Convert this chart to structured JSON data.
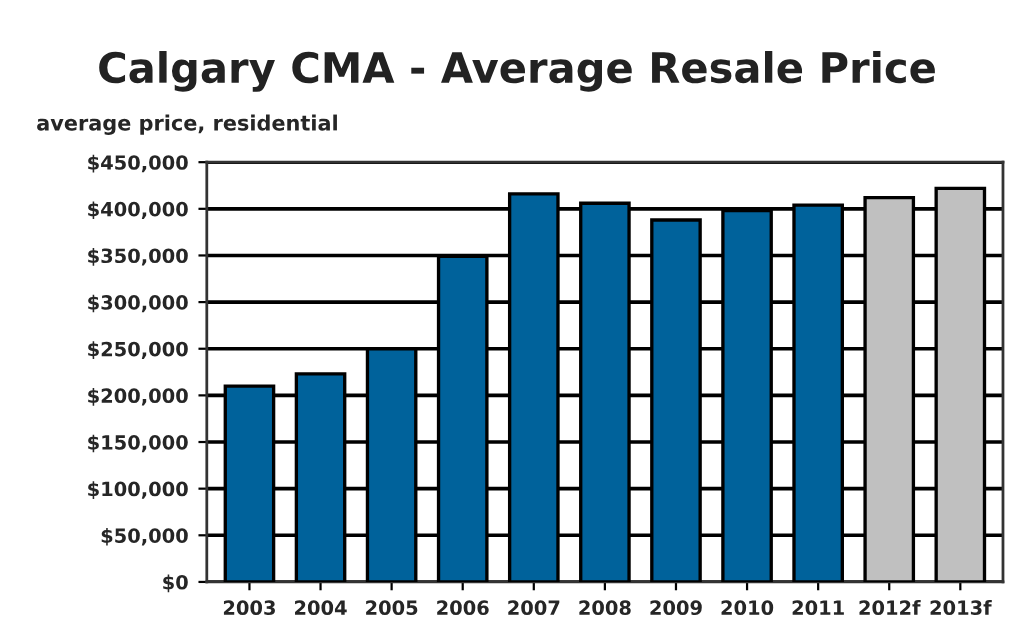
{
  "chart_data": {
    "type": "bar",
    "title": "Calgary CMA - Average Resale Price",
    "subtitle": "average price, residential",
    "categories": [
      "2003",
      "2004",
      "2005",
      "2006",
      "2007",
      "2008",
      "2009",
      "2010",
      "2011",
      "2012f",
      "2013f"
    ],
    "values": [
      210000,
      223000,
      250000,
      349000,
      416000,
      406000,
      388000,
      398000,
      404000,
      412000,
      422000
    ],
    "colors": [
      "#00629b",
      "#00629b",
      "#00629b",
      "#00629b",
      "#00629b",
      "#00629b",
      "#00629b",
      "#00629b",
      "#00629b",
      "#c0c0c0",
      "#c0c0c0"
    ],
    "ylim": [
      0,
      450000
    ],
    "yticks": [
      {
        "value": 0,
        "label": "$0"
      },
      {
        "value": 50000,
        "label": "$50,000"
      },
      {
        "value": 100000,
        "label": "$100,000"
      },
      {
        "value": 150000,
        "label": "$150,000"
      },
      {
        "value": 200000,
        "label": "$200,000"
      },
      {
        "value": 250000,
        "label": "$250,000"
      },
      {
        "value": 300000,
        "label": "$300,000"
      },
      {
        "value": 350000,
        "label": "$350,000"
      },
      {
        "value": 400000,
        "label": "$400,000"
      },
      {
        "value": 450000,
        "label": "$450,000"
      }
    ],
    "grid": "y",
    "legend": false
  }
}
